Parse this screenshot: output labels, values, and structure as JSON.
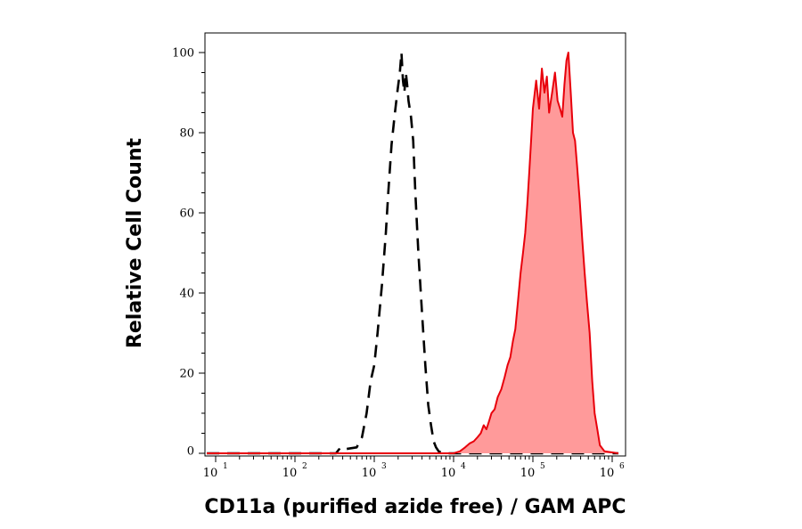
{
  "chart_data": {
    "type": "histogram-overlay",
    "xlabel": "CD11a (purified azide free) / GAM APC",
    "ylabel": "Relative Cell Count",
    "x_scale": "log",
    "xlim": [
      5,
      1200000
    ],
    "ylim": [
      0,
      100
    ],
    "grid": false,
    "legend": "none",
    "x_ticks": [
      {
        "base": "10",
        "exp": "1",
        "value": 10
      },
      {
        "base": "10",
        "exp": "2",
        "value": 100
      },
      {
        "base": "10",
        "exp": "3",
        "value": 1000
      },
      {
        "base": "10",
        "exp": "4",
        "value": 10000
      },
      {
        "base": "10",
        "exp": "5",
        "value": 100000
      },
      {
        "base": "10",
        "exp": "6",
        "value": 1000000
      }
    ],
    "y_ticks": [
      {
        "label": "0",
        "value": 0
      },
      {
        "label": "20",
        "value": 20
      },
      {
        "label": "40",
        "value": 40
      },
      {
        "label": "60",
        "value": 60
      },
      {
        "label": "80",
        "value": 80
      },
      {
        "label": "100",
        "value": 100
      }
    ],
    "series": [
      {
        "style": "dashed-black-outline",
        "color": "#000000",
        "x": [
          5,
          330,
          360,
          390,
          420,
          600,
          700,
          800,
          900,
          1000,
          1100,
          1250,
          1400,
          1500,
          1650,
          1800,
          1950,
          2100,
          2200,
          2300,
          2400,
          2500,
          2600,
          2700,
          2800,
          2900,
          3100,
          3300,
          3600,
          4000,
          4400,
          4800,
          5200,
          5600,
          6000,
          6500,
          7000,
          8000,
          9000,
          10000,
          1200000
        ],
        "y": [
          0,
          0,
          1,
          0.5,
          1,
          1.5,
          4,
          10,
          18,
          22,
          30,
          42,
          55,
          65,
          77,
          84,
          90,
          95,
          100,
          93,
          90,
          95,
          92,
          88,
          86,
          84,
          78,
          65,
          50,
          35,
          22,
          12,
          7,
          3,
          1.5,
          0.5,
          0.2,
          0,
          0,
          0,
          0
        ]
      },
      {
        "style": "filled-red",
        "color": "#e8000b",
        "fill": "#ff9a9a",
        "x": [
          5,
          10000,
          12000,
          14000,
          16000,
          18000,
          20000,
          22000,
          24000,
          26000,
          28000,
          30000,
          33000,
          36000,
          40000,
          44000,
          48000,
          52000,
          56000,
          60000,
          65000,
          70000,
          75000,
          80000,
          85000,
          90000,
          95000,
          100000,
          110000,
          120000,
          130000,
          140000,
          150000,
          160000,
          175000,
          190000,
          205000,
          220000,
          235000,
          250000,
          265000,
          280000,
          300000,
          320000,
          340000,
          360000,
          390000,
          420000,
          450000,
          480000,
          520000,
          560000,
          600000,
          650000,
          700000,
          800000,
          1200000
        ],
        "y": [
          0,
          0,
          0.5,
          1.5,
          2.5,
          3,
          4,
          5,
          7,
          6,
          8,
          10,
          11,
          14,
          16,
          19,
          22,
          24,
          28,
          31,
          38,
          45,
          50,
          55,
          62,
          70,
          78,
          86,
          93,
          86,
          96,
          90,
          94,
          85,
          90,
          95,
          88,
          86,
          84,
          92,
          98,
          100,
          90,
          80,
          78,
          72,
          63,
          53,
          45,
          38,
          30,
          18,
          10,
          6,
          2,
          0.5,
          0
        ]
      }
    ]
  }
}
